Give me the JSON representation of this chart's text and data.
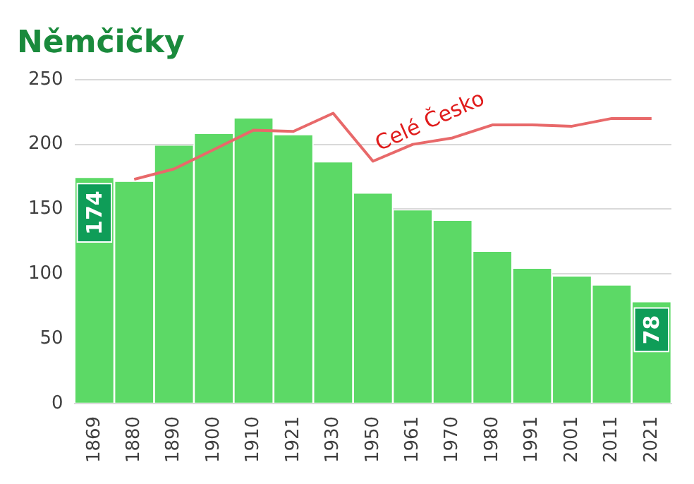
{
  "chart_data": {
    "type": "bar",
    "title": "Němčičky",
    "categories": [
      "1869",
      "1880",
      "1890",
      "1900",
      "1910",
      "1921",
      "1930",
      "1950",
      "1961",
      "1970",
      "1980",
      "1991",
      "2001",
      "2011",
      "2021"
    ],
    "series": [
      {
        "color": "#5cd966",
        "values": [
          174,
          171,
          199,
          208,
          220,
          207,
          186,
          162,
          149,
          141,
          117,
          104,
          98,
          91,
          78
        ],
        "value_labels": [
          "174",
          null,
          null,
          null,
          null,
          null,
          null,
          null,
          null,
          null,
          null,
          null,
          null,
          null,
          "78"
        ]
      },
      {
        "type": "line",
        "name": "Celé Česko",
        "color": "#e8696a",
        "values": [
          null,
          173,
          181,
          196,
          211,
          210,
          224,
          187,
          200,
          205,
          215,
          215,
          214,
          220,
          220
        ]
      }
    ],
    "ylim": [
      0,
      250
    ],
    "yticks": [
      0,
      50,
      100,
      150,
      200,
      250
    ],
    "grid": "y",
    "legend": false,
    "marker": "none",
    "line_style": "solid"
  }
}
